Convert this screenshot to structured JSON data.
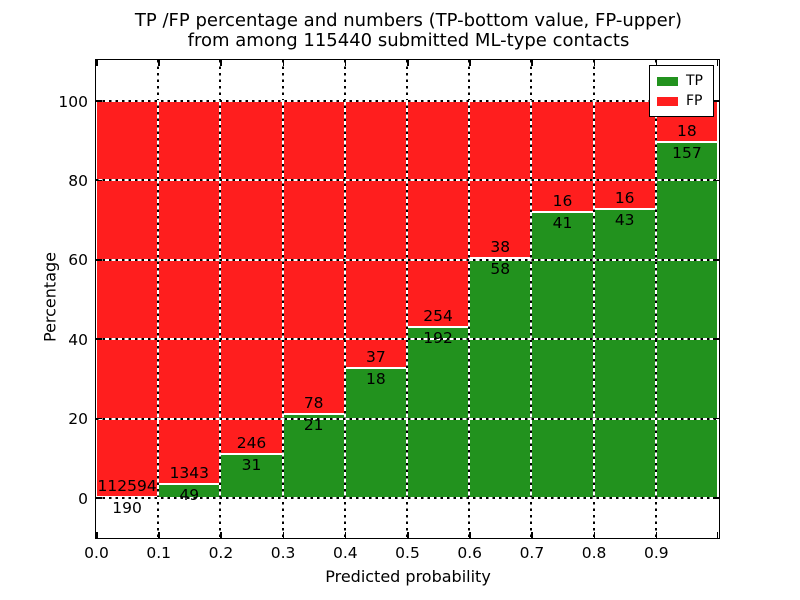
{
  "chart_data": {
    "type": "bar",
    "stacked": true,
    "title_line1": "TP /FP percentage and numbers (TP-bottom value, FP-upper)",
    "title_line2": "from among 115440 submitted ML-type contacts",
    "total_submitted": 115440,
    "xlabel": "Predicted probability",
    "ylabel": "Percentage",
    "xlim": [
      0.0,
      1.0
    ],
    "ylim": [
      -10,
      110
    ],
    "bin_width": 0.1,
    "bin_starts": [
      0.0,
      0.1,
      0.2,
      0.3,
      0.4,
      0.5,
      0.6,
      0.7,
      0.8,
      0.9
    ],
    "xticks": [
      "0.0",
      "0.1",
      "0.2",
      "0.3",
      "0.4",
      "0.5",
      "0.6",
      "0.7",
      "0.8",
      "0.9"
    ],
    "ytick_values": [
      0,
      20,
      40,
      60,
      80,
      100
    ],
    "yticks": [
      "0",
      "20",
      "40",
      "60",
      "80",
      "100"
    ],
    "grid": "dotted",
    "series": [
      {
        "name": "TP",
        "color": "#22921E",
        "counts": [
          190,
          49,
          31,
          21,
          18,
          192,
          58,
          41,
          43,
          157
        ]
      },
      {
        "name": "FP",
        "color": "#FF1E1E",
        "counts": [
          112594,
          1343,
          246,
          78,
          37,
          254,
          38,
          16,
          16,
          18
        ]
      }
    ],
    "tp_percent": [
      0.17,
      3.52,
      11.19,
      21.21,
      32.73,
      43.05,
      60.42,
      71.93,
      72.88,
      89.71
    ],
    "legend": {
      "position": "upper right",
      "entries": [
        {
          "label": "TP",
          "color": "#22921E"
        },
        {
          "label": "FP",
          "color": "#FF1E1E"
        }
      ]
    }
  }
}
